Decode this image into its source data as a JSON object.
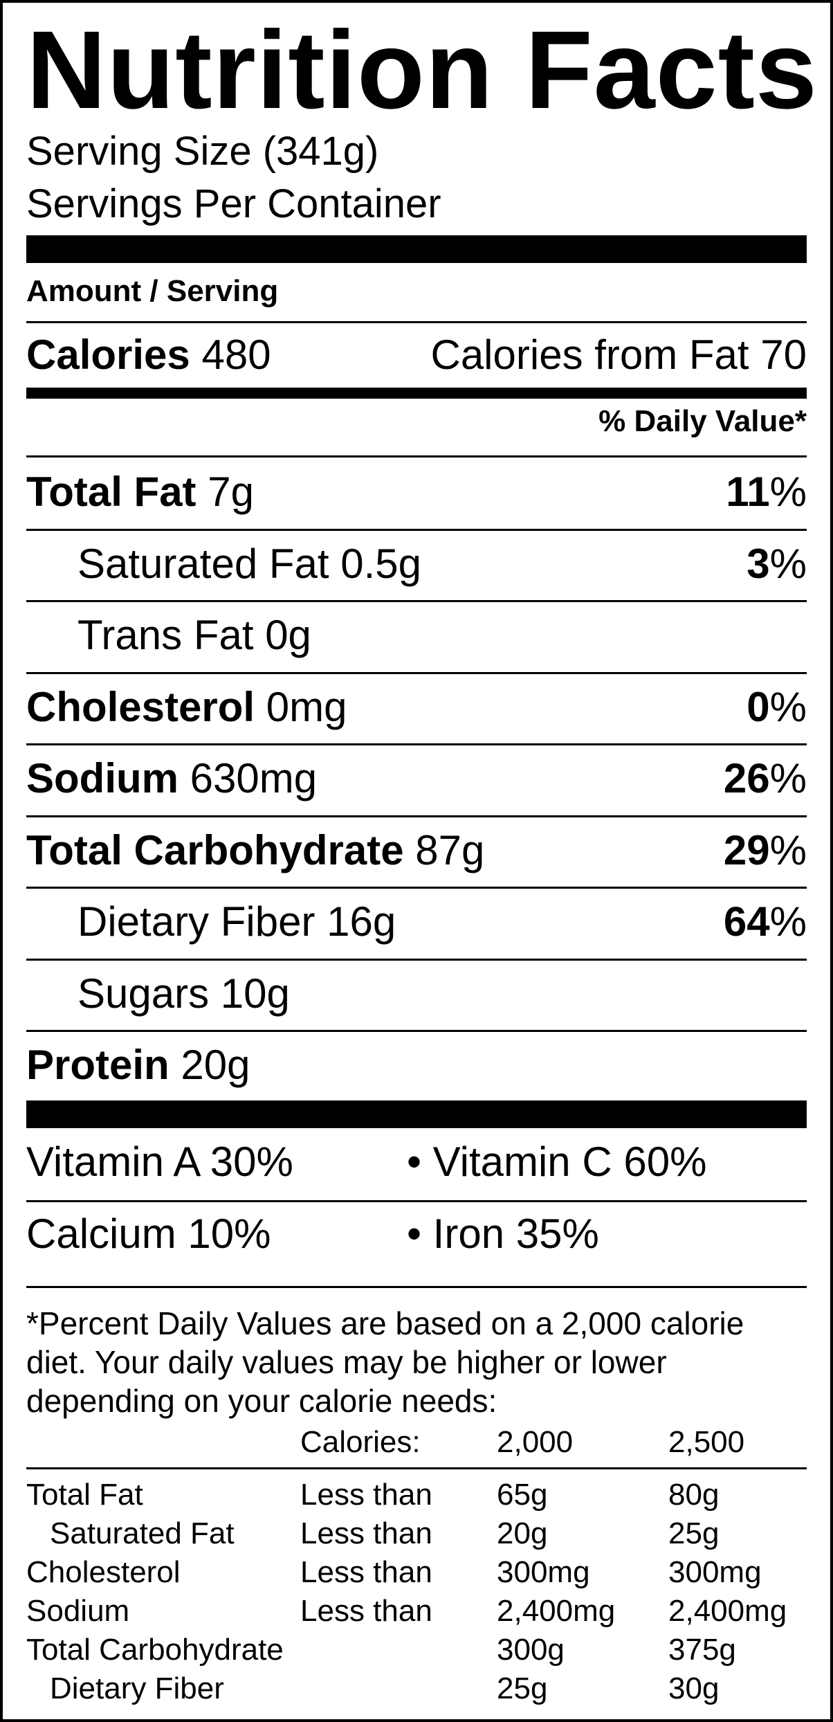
{
  "title": "Nutrition Facts",
  "serving_size": "Serving Size (341g)",
  "servings_per_container": "Servings Per Container",
  "amount_per_serving": "Amount / Serving",
  "calories_label": "Calories",
  "calories_value": "480",
  "calories_from_fat": "Calories from Fat 70",
  "daily_value_header": "% Daily Value*",
  "nutrients": [
    {
      "name": "Total Fat",
      "amount": "7g",
      "dv": "11",
      "bold": true
    },
    {
      "name": "Saturated Fat",
      "amount": "0.5g",
      "dv": "3",
      "bold": false
    },
    {
      "name": "Trans Fat",
      "amount": "0g",
      "dv": "",
      "bold": false
    },
    {
      "name": "Cholesterol",
      "amount": "0mg",
      "dv": "0",
      "bold": true
    },
    {
      "name": "Sodium",
      "amount": "630mg",
      "dv": "26",
      "bold": true
    },
    {
      "name": "Total Carbohydrate",
      "amount": "87g",
      "dv": "29",
      "bold": true
    },
    {
      "name": "Dietary Fiber",
      "amount": "16g",
      "dv": "64",
      "bold": false
    },
    {
      "name": "Sugars",
      "amount": "10g",
      "dv": "",
      "bold": false
    },
    {
      "name": "Protein",
      "amount": "20g",
      "dv": "",
      "bold": true
    }
  ],
  "percent_sign": "%",
  "vitamins": {
    "vitamin_a": "Vitamin A 30%",
    "vitamin_c": "• Vitamin C 60%",
    "calcium": "Calcium 10%",
    "iron": "• Iron 35%"
  },
  "footnote": "*Percent Daily Values are based on a 2,000 calorie diet. Your daily values may be higher or lower depending on your calorie needs:",
  "footnote_table": {
    "header": [
      "Calories:",
      "2,000",
      "2,500"
    ],
    "rows": [
      [
        "Total Fat",
        "Less than",
        "65g",
        "80g"
      ],
      [
        "Saturated Fat",
        "Less than",
        "20g",
        "25g"
      ],
      [
        "Cholesterol",
        "Less than",
        "300mg",
        "300mg"
      ],
      [
        "Sodium",
        "Less than",
        "2,400mg",
        "2,400mg"
      ],
      [
        "Total Carbohydrate",
        "",
        "300g",
        "375g"
      ],
      [
        "Dietary Fiber",
        "",
        "25g",
        "30g"
      ]
    ]
  }
}
